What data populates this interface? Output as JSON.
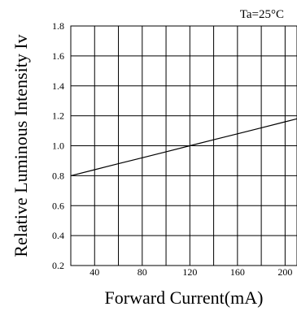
{
  "chart_data": {
    "type": "line",
    "title": "",
    "xlabel": "Forward Current(mA)",
    "ylabel": "Relative Luminous Intensity Iv",
    "condition": "Ta=25°C",
    "xlim": [
      20,
      210
    ],
    "ylim": [
      0.2,
      1.8
    ],
    "xticks": [
      40,
      80,
      120,
      160,
      200
    ],
    "yticks": [
      0.2,
      0.4,
      0.6,
      0.8,
      1.0,
      1.2,
      1.4,
      1.6,
      1.8
    ],
    "xticklabels": [
      "40",
      "80",
      "120",
      "160",
      "200"
    ],
    "yticklabels": [
      "0.2",
      "0.4",
      "0.6",
      "0.8",
      "1.0",
      "1.2",
      "1.4",
      "1.6",
      "1.8"
    ],
    "grid_x": [
      20,
      40,
      60,
      80,
      100,
      120,
      140,
      160,
      180,
      200
    ],
    "grid": true,
    "series": [
      {
        "x": [
          20,
          40,
          60,
          80,
          100,
          120,
          140,
          160,
          180,
          200,
          210
        ],
        "y": [
          0.8,
          0.84,
          0.88,
          0.92,
          0.96,
          1.0,
          1.04,
          1.08,
          1.12,
          1.16,
          1.18
        ],
        "color": "#000000"
      }
    ]
  }
}
